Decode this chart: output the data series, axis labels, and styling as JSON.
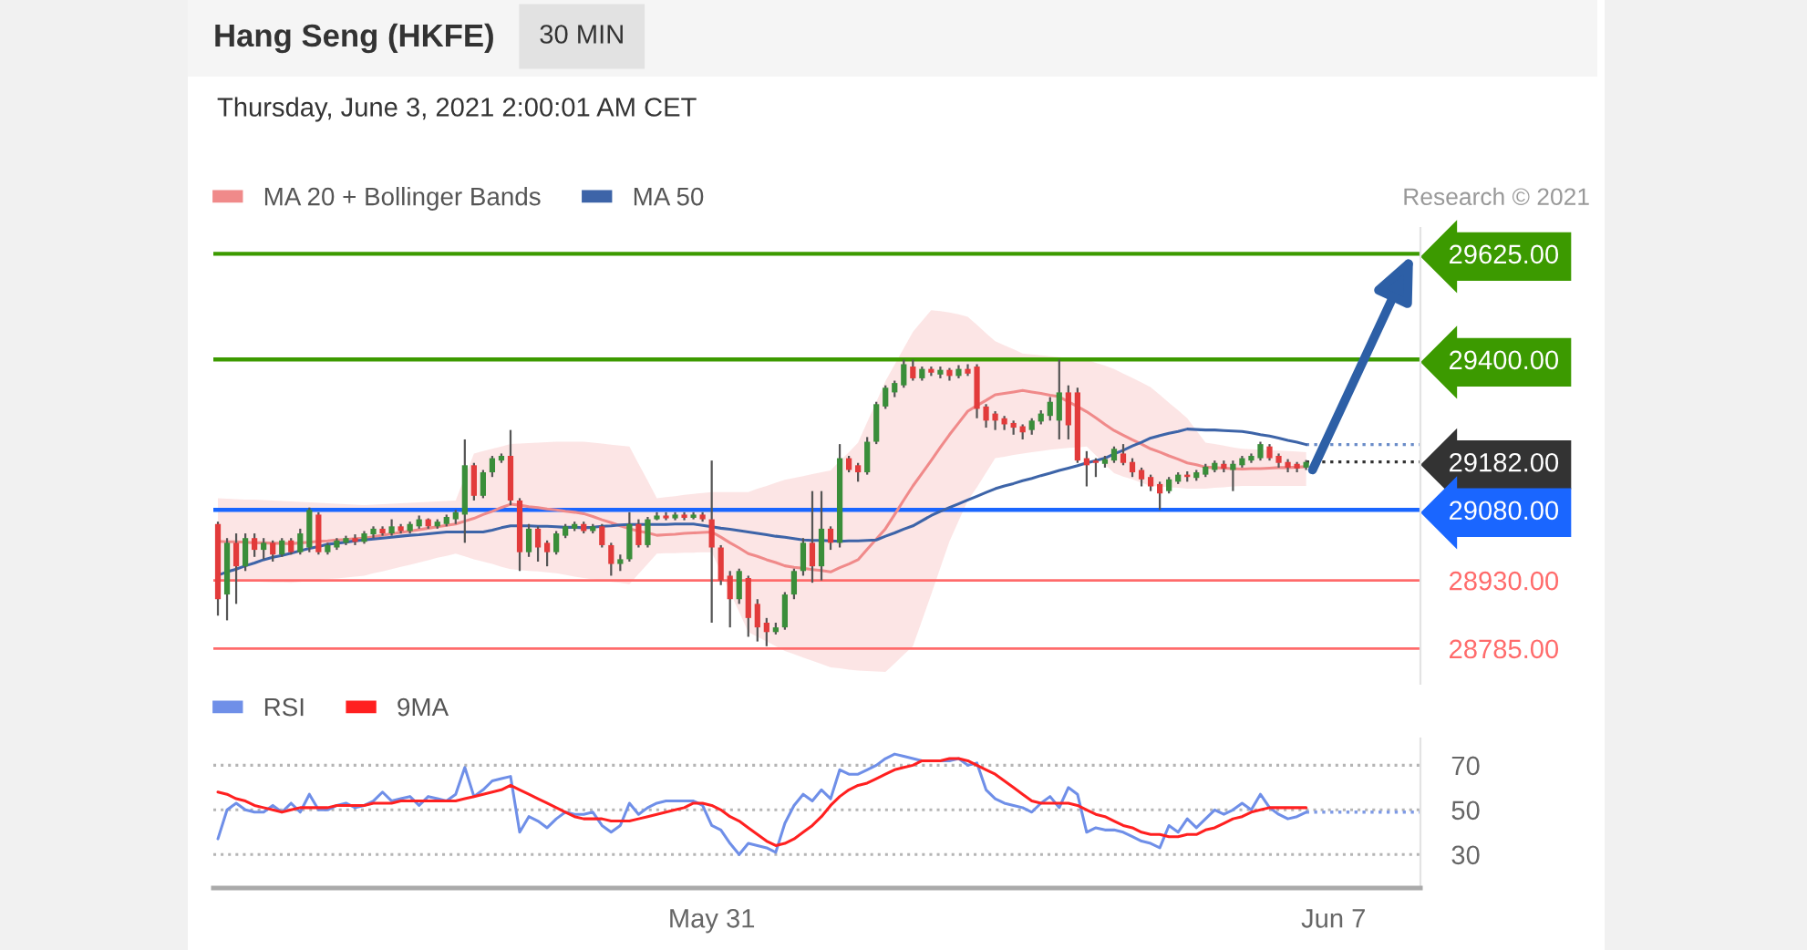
{
  "chart_data": [
    {
      "type": "candlestick",
      "title": "Hang Seng (HKFE)",
      "subtitle": "Thursday, June 3, 2021 2:00:01 AM CET",
      "annotations": [
        "30 MIN",
        "Research © 2021"
      ],
      "categories": [
        null,
        null,
        null,
        null,
        null,
        null,
        null,
        null,
        null,
        null,
        null,
        null,
        null,
        null,
        null,
        null,
        null,
        null,
        null,
        null,
        null,
        null,
        null,
        null,
        null,
        null,
        null,
        null,
        null,
        null,
        null,
        null,
        null,
        null,
        null,
        null,
        null,
        null,
        null,
        null,
        null,
        null,
        null,
        null,
        null,
        null,
        null,
        null,
        null,
        null,
        null,
        null,
        null,
        null,
        null,
        null,
        null,
        null,
        null,
        null,
        null,
        null,
        null,
        null,
        null,
        null,
        null,
        null,
        null,
        null,
        null,
        null,
        null,
        null,
        null,
        null,
        null,
        null,
        null,
        null,
        null,
        null,
        null,
        null,
        null,
        null,
        null,
        null,
        null,
        null,
        null,
        null,
        null,
        null,
        null,
        null,
        null,
        null,
        null,
        null,
        null,
        null,
        null,
        null,
        null,
        null,
        null,
        null,
        null,
        null,
        null,
        null,
        null,
        null,
        null,
        null,
        null,
        null,
        null,
        null,
        null,
        null,
        null,
        null,
        null,
        null,
        null,
        null,
        null,
        null,
        null,
        null
      ],
      "ohlc": [
        [
          29050,
          29055,
          28855,
          28890
        ],
        [
          28900,
          29020,
          28845,
          29010
        ],
        [
          29010,
          29030,
          28880,
          28960
        ],
        [
          28960,
          29030,
          28950,
          29020
        ],
        [
          29020,
          29030,
          28980,
          28995
        ],
        [
          28995,
          29020,
          28975,
          29010
        ],
        [
          29010,
          29015,
          28970,
          28985
        ],
        [
          28985,
          29020,
          28980,
          29015
        ],
        [
          29015,
          29020,
          28985,
          28990
        ],
        [
          28990,
          29040,
          28985,
          29030
        ],
        [
          29000,
          29085,
          28990,
          29080
        ],
        [
          29070,
          29075,
          28985,
          28990
        ],
        [
          28990,
          29010,
          28985,
          29005
        ],
        [
          29000,
          29020,
          28995,
          29015
        ],
        [
          29010,
          29025,
          29005,
          29020
        ],
        [
          29020,
          29028,
          29005,
          29012
        ],
        [
          29012,
          29035,
          29008,
          29030
        ],
        [
          29028,
          29045,
          29020,
          29040
        ],
        [
          29040,
          29045,
          29025,
          29030
        ],
        [
          29030,
          29060,
          29025,
          29045
        ],
        [
          29045,
          29050,
          29030,
          29035
        ],
        [
          29035,
          29055,
          29030,
          29050
        ],
        [
          29045,
          29068,
          29040,
          29060
        ],
        [
          29060,
          29062,
          29040,
          29045
        ],
        [
          29045,
          29060,
          29040,
          29055
        ],
        [
          29050,
          29070,
          29045,
          29065
        ],
        [
          29060,
          29080,
          29050,
          29075
        ],
        [
          29070,
          29230,
          29010,
          29175
        ],
        [
          29175,
          29180,
          29100,
          29110
        ],
        [
          29110,
          29165,
          29105,
          29160
        ],
        [
          29160,
          29195,
          29150,
          29190
        ],
        [
          29185,
          29200,
          29180,
          29195
        ],
        [
          29195,
          29250,
          29090,
          29100
        ],
        [
          29100,
          29105,
          28950,
          28990
        ],
        [
          28990,
          29050,
          28980,
          29040
        ],
        [
          29040,
          29045,
          28970,
          29000
        ],
        [
          29010,
          29015,
          28960,
          28990
        ],
        [
          28990,
          29035,
          28985,
          29030
        ],
        [
          29025,
          29050,
          29020,
          29045
        ],
        [
          29040,
          29055,
          29035,
          29050
        ],
        [
          29050,
          29055,
          29030,
          29035
        ],
        [
          29035,
          29050,
          29030,
          29045
        ],
        [
          29045,
          29050,
          29000,
          29005
        ],
        [
          29005,
          29010,
          28940,
          28965
        ],
        [
          28965,
          28985,
          28950,
          28975
        ],
        [
          28975,
          29075,
          28970,
          29050
        ],
        [
          29050,
          29060,
          29000,
          29005
        ],
        [
          29005,
          29065,
          29000,
          29060
        ],
        [
          29060,
          29075,
          29058,
          29068
        ],
        [
          29068,
          29075,
          29058,
          29062
        ],
        [
          29062,
          29075,
          29058,
          29070
        ],
        [
          29070,
          29075,
          29058,
          29063
        ],
        [
          29063,
          29075,
          29060,
          29070
        ],
        [
          29070,
          29075,
          29055,
          29060
        ],
        [
          29060,
          29185,
          28840,
          29000
        ],
        [
          29000,
          29005,
          28920,
          28930
        ],
        [
          28940,
          28950,
          28830,
          28890
        ],
        [
          28890,
          28955,
          28880,
          28950
        ],
        [
          28935,
          28940,
          28810,
          28850
        ],
        [
          28880,
          28890,
          28800,
          28830
        ],
        [
          28840,
          28850,
          28790,
          28820
        ],
        [
          28820,
          28840,
          28815,
          28830
        ],
        [
          28830,
          28905,
          28825,
          28900
        ],
        [
          28900,
          28955,
          28890,
          28950
        ],
        [
          28950,
          29020,
          28940,
          29010
        ],
        [
          29010,
          29120,
          28925,
          28960
        ],
        [
          28960,
          29120,
          28930,
          29040
        ],
        [
          29040,
          29045,
          28995,
          29010
        ],
        [
          29010,
          29220,
          29000,
          29190
        ],
        [
          29190,
          29195,
          29160,
          29165
        ],
        [
          29175,
          29180,
          29140,
          29160
        ],
        [
          29160,
          29235,
          29155,
          29225
        ],
        [
          29225,
          29310,
          29220,
          29305
        ],
        [
          29300,
          29345,
          29295,
          29340
        ],
        [
          29330,
          29355,
          29320,
          29350
        ],
        [
          29345,
          29400,
          29340,
          29390
        ],
        [
          29385,
          29400,
          29355,
          29360
        ],
        [
          29360,
          29385,
          29355,
          29380
        ],
        [
          29380,
          29385,
          29365,
          29372
        ],
        [
          29368,
          29385,
          29360,
          29378
        ],
        [
          29378,
          29382,
          29355,
          29365
        ],
        [
          29365,
          29388,
          29360,
          29380
        ],
        [
          29380,
          29390,
          29365,
          29370
        ],
        [
          29385,
          29390,
          29275,
          29295
        ],
        [
          29300,
          29305,
          29255,
          29270
        ],
        [
          29285,
          29290,
          29250,
          29270
        ],
        [
          29275,
          29280,
          29250,
          29262
        ],
        [
          29265,
          29270,
          29240,
          29255
        ],
        [
          29258,
          29262,
          29230,
          29245
        ],
        [
          29250,
          29275,
          29240,
          29270
        ],
        [
          29268,
          29292,
          29262,
          29285
        ],
        [
          29280,
          29320,
          29270,
          29310
        ],
        [
          29270,
          29400,
          29230,
          29330
        ],
        [
          29330,
          29345,
          29230,
          29260
        ],
        [
          29330,
          29340,
          29180,
          29185
        ],
        [
          29190,
          29205,
          29130,
          29175
        ],
        [
          29185,
          29190,
          29150,
          29180
        ],
        [
          29178,
          29195,
          29170,
          29188
        ],
        [
          29185,
          29215,
          29180,
          29210
        ],
        [
          29200,
          29220,
          29175,
          29180
        ],
        [
          29182,
          29190,
          29150,
          29160
        ],
        [
          29165,
          29170,
          29130,
          29145
        ],
        [
          29150,
          29155,
          29120,
          29130
        ],
        [
          29135,
          29140,
          29080,
          29115
        ],
        [
          29120,
          29150,
          29115,
          29145
        ],
        [
          29140,
          29160,
          29135,
          29155
        ],
        [
          29155,
          29162,
          29140,
          29150
        ],
        [
          29148,
          29165,
          29142,
          29160
        ],
        [
          29155,
          29178,
          29150,
          29172
        ],
        [
          29165,
          29185,
          29160,
          29180
        ],
        [
          29178,
          29185,
          29160,
          29168
        ],
        [
          29165,
          29185,
          29120,
          29178
        ],
        [
          29175,
          29195,
          29170,
          29190
        ],
        [
          29185,
          29200,
          29180,
          29195
        ],
        [
          29190,
          29225,
          29185,
          29220
        ],
        [
          29215,
          29220,
          29185,
          29190
        ],
        [
          29195,
          29200,
          29170,
          29180
        ],
        [
          29182,
          29188,
          29160,
          29170
        ],
        [
          29178,
          29182,
          29160,
          29168
        ],
        [
          29170,
          29186,
          29165,
          29182
        ],
        null,
        null,
        null,
        null,
        null,
        null,
        null,
        null,
        null,
        null,
        null,
        null
      ],
      "colors": [
        "#e23b3b",
        "#3a8e3a",
        "#e23b3b",
        "#3a8e3a",
        "#e23b3b",
        "#3a8e3a",
        "#e23b3b",
        "#3a8e3a",
        "#e23b3b",
        "#3a8e3a",
        "#3a8e3a",
        "#e23b3b",
        "#3a8e3a",
        "#3a8e3a",
        "#3a8e3a",
        "#e23b3b",
        "#3a8e3a",
        "#3a8e3a",
        "#e23b3b",
        "#3a8e3a",
        "#e23b3b",
        "#3a8e3a",
        "#3a8e3a",
        "#e23b3b",
        "#3a8e3a",
        "#3a8e3a",
        "#3a8e3a",
        "#3a8e3a",
        "#e23b3b",
        "#3a8e3a",
        "#3a8e3a",
        "#3a8e3a",
        "#e23b3b",
        "#e23b3b",
        "#3a8e3a",
        "#e23b3b",
        "#e23b3b",
        "#3a8e3a",
        "#3a8e3a",
        "#3a8e3a",
        "#e23b3b",
        "#3a8e3a",
        "#e23b3b",
        "#e23b3b",
        "#3a8e3a",
        "#3a8e3a",
        "#e23b3b",
        "#3a8e3a",
        "#3a8e3a",
        "#e23b3b",
        "#3a8e3a",
        "#e23b3b",
        "#3a8e3a",
        "#e23b3b",
        "#e23b3b",
        "#e23b3b",
        "#e23b3b",
        "#3a8e3a",
        "#e23b3b",
        "#e23b3b",
        "#e23b3b",
        "#3a8e3a",
        "#3a8e3a",
        "#3a8e3a",
        "#3a8e3a",
        "#e23b3b",
        "#3a8e3a",
        "#e23b3b",
        "#3a8e3a",
        "#e23b3b",
        "#e23b3b",
        "#3a8e3a",
        "#3a8e3a",
        "#3a8e3a",
        "#3a8e3a",
        "#3a8e3a",
        "#e23b3b",
        "#3a8e3a",
        "#e23b3b",
        "#3a8e3a",
        "#e23b3b",
        "#3a8e3a",
        "#e23b3b",
        "#e23b3b",
        "#e23b3b",
        "#e23b3b",
        "#e23b3b",
        "#e23b3b",
        "#e23b3b",
        "#3a8e3a",
        "#3a8e3a",
        "#3a8e3a",
        "#3a8e3a",
        "#e23b3b",
        "#e23b3b",
        "#e23b3b",
        "#e23b3b",
        "#3a8e3a",
        "#3a8e3a",
        "#e23b3b",
        "#e23b3b",
        "#e23b3b",
        "#e23b3b",
        "#e23b3b",
        "#3a8e3a",
        "#3a8e3a",
        "#e23b3b",
        "#3a8e3a",
        "#3a8e3a",
        "#3a8e3a",
        "#e23b3b",
        "#3a8e3a",
        "#3a8e3a",
        "#3a8e3a",
        "#3a8e3a",
        "#e23b3b",
        "#e23b3b",
        "#e23b3b",
        "#e23b3b",
        "#3a8e3a",
        null,
        null,
        null,
        null,
        null,
        null,
        null,
        null,
        null,
        null,
        null,
        null
      ],
      "series": [
        {
          "name": "MA 20 + Bollinger Bands",
          "type": "line",
          "color": "#f08a8a",
          "values": [
            29013,
            29012,
            29012,
            29011,
            29010,
            29010,
            29009,
            29009,
            29008,
            29010,
            29011,
            29013,
            29014,
            29016,
            29017,
            29019,
            29020,
            29023,
            29026,
            29029,
            29032,
            29035,
            29038,
            29041,
            29044,
            29047,
            29050,
            29056,
            29062,
            29070,
            29077,
            29085,
            29092,
            29090,
            29087,
            29085,
            29082,
            29080,
            29077,
            29075,
            29072,
            29066,
            29059,
            29053,
            29046,
            29040,
            29035,
            29031,
            29026,
            29027,
            29028,
            29030,
            29031,
            29032,
            29033,
            29022,
            29010,
            28999,
            28987,
            28981,
            28974,
            28968,
            28961,
            28958,
            28956,
            28953,
            28951,
            28948,
            28957,
            28965,
            28974,
            28996,
            29018,
            29040,
            29070,
            29101,
            29131,
            29158,
            29185,
            29213,
            29240,
            29265,
            29290,
            29302,
            29313,
            29325,
            29328,
            29331,
            29334,
            29331,
            29328,
            29324,
            29321,
            29310,
            29300,
            29289,
            29276,
            29262,
            29249,
            29239,
            29229,
            29220,
            29210,
            29203,
            29195,
            29188,
            29180,
            29176,
            29171,
            29170,
            29169,
            29168,
            29167,
            29168,
            29168,
            29169,
            29170,
            29170,
            29171,
            29172,
            null,
            null,
            null,
            null,
            null,
            null,
            null,
            null,
            null,
            null,
            null,
            null
          ],
          "lower": [
            28930,
            28929,
            28929,
            28928,
            28928,
            28927,
            28926,
            28926,
            28925,
            28927,
            28929,
            28931,
            28933,
            28934,
            28936,
            28938,
            28940,
            28945,
            28949,
            28954,
            28959,
            28963,
            28968,
            28973,
            28978,
            28982,
            28987,
            28981,
            28975,
            28970,
            28965,
            28959,
            28954,
            28952,
            28950,
            28949,
            28947,
            28945,
            28942,
            28938,
            28935,
            28932,
            28930,
            28927,
            28925,
            28922,
            28944,
            28965,
            28987,
            28988,
            28988,
            28989,
            28989,
            28990,
            28990,
            28948,
            28905,
            28863,
            28820,
            28810,
            28800,
            28790,
            28780,
            28773,
            28766,
            28759,
            28752,
            28745,
            28743,
            28740,
            28738,
            28737,
            28736,
            28735,
            28753,
            28772,
            28790,
            28845,
            28900,
            28957,
            29013,
            29057,
            29100,
            29128,
            29159,
            29190,
            29193,
            29197,
            29200,
            29203,
            29205,
            29208,
            29210,
            29212,
            29213,
            29215,
            29196,
            29177,
            29158,
            29151,
            29145,
            29138,
            29131,
            29130,
            29128,
            29127,
            29125,
            29125,
            29125,
            29127,
            29128,
            29130,
            29131,
            29131,
            29131,
            29131,
            29131,
            29131,
            29131,
            29131,
            null,
            null,
            null,
            null,
            null,
            null,
            null,
            null,
            null,
            null,
            null,
            null
          ],
          "upper": [
            29105,
            29104,
            29103,
            29102,
            29102,
            29101,
            29100,
            29099,
            29098,
            29097,
            29096,
            29095,
            29094,
            29093,
            29092,
            29091,
            29090,
            29091,
            29092,
            29093,
            29094,
            29095,
            29096,
            29097,
            29098,
            29099,
            29100,
            29150,
            29200,
            29205,
            29210,
            29215,
            29220,
            29221,
            29222,
            29223,
            29224,
            29225,
            29225,
            29225,
            29225,
            29223,
            29221,
            29219,
            29217,
            29215,
            29178,
            29142,
            29105,
            29107,
            29109,
            29112,
            29114,
            29116,
            29118,
            29118,
            29118,
            29118,
            29118,
            29125,
            29131,
            29138,
            29144,
            29148,
            29152,
            29156,
            29160,
            29164,
            29184,
            29203,
            29223,
            29267,
            29310,
            29354,
            29389,
            29424,
            29459,
            29482,
            29505,
            29503,
            29500,
            29496,
            29491,
            29474,
            29456,
            29439,
            29430,
            29422,
            29413,
            29411,
            29409,
            29407,
            29405,
            29403,
            29402,
            29400,
            29393,
            29387,
            29380,
            29370,
            29361,
            29351,
            29341,
            29325,
            29308,
            29292,
            29275,
            29249,
            29223,
            29220,
            29217,
            29213,
            29210,
            29209,
            29208,
            29207,
            29206,
            29205,
            29204,
            29203,
            null,
            null,
            null,
            null,
            null,
            null,
            null,
            null,
            null,
            null,
            null,
            null
          ]
        },
        {
          "name": "MA 50",
          "type": "line",
          "color": "#3d64a8",
          "values": [
            28941,
            28948,
            28954,
            28961,
            28967,
            28974,
            28979,
            28983,
            28988,
            28993,
            28998,
            29002,
            29007,
            29009,
            29011,
            29014,
            29016,
            29018,
            29020,
            29022,
            29024,
            29026,
            29027,
            29029,
            29031,
            29033,
            29033,
            29033,
            29033,
            29033,
            29037,
            29042,
            29046,
            29046,
            29046,
            29045,
            29045,
            29044,
            29043,
            29043,
            29042,
            29043,
            29045,
            29046,
            29048,
            29049,
            29049,
            29049,
            29049,
            29049,
            29050,
            29050,
            29050,
            29047,
            29044,
            29041,
            29039,
            29036,
            29033,
            29030,
            29027,
            29024,
            29022,
            29019,
            29016,
            29015,
            29015,
            29014,
            29013,
            29014,
            29014,
            29015,
            29016,
            29024,
            29031,
            29039,
            29046,
            29057,
            29068,
            29077,
            29085,
            29093,
            29101,
            29109,
            29117,
            29125,
            29131,
            29136,
            29142,
            29147,
            29153,
            29158,
            29164,
            29169,
            29174,
            29180,
            29185,
            29190,
            29199,
            29207,
            29216,
            29224,
            29233,
            29238,
            29243,
            29247,
            29252,
            29251,
            29250,
            29250,
            29249,
            29248,
            29247,
            29244,
            29240,
            29237,
            29233,
            29228,
            29224,
            29219,
            null,
            null,
            null,
            null,
            null,
            null,
            null,
            null,
            null,
            null,
            null,
            null
          ]
        }
      ],
      "ylim": [
        28710,
        29680
      ],
      "yticks": [
        {
          "value": 29625,
          "label": "29625.00"
        },
        {
          "value": 29400,
          "label": "29400.00"
        },
        {
          "value": 29182,
          "label": "29182.00"
        },
        {
          "value": 29080,
          "label": "29080.00"
        },
        {
          "value": 28930,
          "label": "28930.00"
        },
        {
          "value": 28785,
          "label": "28785.00"
        }
      ],
      "ref_lines": [
        {
          "axis": "y",
          "value": 29625,
          "color": "#3c9a00"
        },
        {
          "axis": "y",
          "value": 29400,
          "color": "#3c9a00"
        },
        {
          "axis": "y",
          "value": 29219,
          "color": "#6a8cc8",
          "line_style": "dotted"
        },
        {
          "axis": "y",
          "value": 29182,
          "color": "#333333",
          "line_style": "dotted"
        },
        {
          "axis": "y",
          "value": 29080,
          "color": "#1a66ff"
        },
        {
          "axis": "y",
          "value": 28930,
          "color": "#ff6b6b"
        },
        {
          "axis": "y",
          "value": 28785,
          "color": "#ff6b6b"
        }
      ],
      "legend": "top left",
      "tick_labels": "y"
    },
    {
      "type": "line",
      "categories": [
        null,
        null,
        null,
        null,
        null,
        null,
        null,
        null,
        null,
        null,
        null,
        null,
        null,
        null,
        null,
        null,
        null,
        null,
        null,
        null,
        null,
        null,
        null,
        null,
        null,
        null,
        null,
        null,
        null,
        null,
        null,
        null,
        null,
        null,
        null,
        null,
        null,
        null,
        null,
        null,
        null,
        null,
        null,
        null,
        null,
        null,
        null,
        null,
        null,
        null,
        null,
        null,
        null,
        null,
        "May 31",
        null,
        null,
        null,
        null,
        null,
        null,
        null,
        null,
        null,
        null,
        null,
        null,
        null,
        null,
        null,
        null,
        null,
        null,
        null,
        null,
        null,
        null,
        null,
        null,
        null,
        null,
        null,
        null,
        null,
        null,
        null,
        null,
        null,
        null,
        null,
        null,
        null,
        null,
        null,
        null,
        null,
        null,
        null,
        null,
        null,
        null,
        null,
        null,
        null,
        null,
        null,
        null,
        null,
        null,
        null,
        null,
        null,
        null,
        null,
        null,
        null,
        null,
        null,
        null,
        null,
        null,
        null,
        "Jun 7",
        null,
        null,
        null,
        null,
        null,
        null,
        null,
        null,
        null
      ],
      "series": [
        {
          "name": "RSI",
          "color": "#6f8fe8",
          "values": [
            37,
            50,
            53,
            50,
            49,
            49,
            52,
            49,
            53,
            49,
            57,
            50,
            50,
            52,
            53,
            51,
            52,
            54,
            58,
            54,
            55,
            56,
            52,
            56,
            55,
            54,
            57,
            69,
            56,
            59,
            63,
            64,
            65,
            40,
            47,
            45,
            42,
            46,
            49,
            48,
            48,
            49,
            43,
            40,
            43,
            53,
            48,
            51,
            53,
            54,
            54,
            54,
            54,
            52,
            43,
            41,
            35,
            30,
            35,
            34,
            33,
            31,
            44,
            52,
            57,
            54,
            59,
            55,
            68,
            66,
            66,
            68,
            70,
            73,
            75,
            74,
            73,
            72,
            72,
            72,
            72,
            73,
            70,
            71,
            59,
            55,
            53,
            52,
            51,
            49,
            53,
            56,
            51,
            60,
            57,
            40,
            42,
            41,
            41,
            40,
            38,
            36,
            35,
            33,
            43,
            40,
            46,
            42,
            46,
            50,
            48,
            50,
            53,
            50,
            57,
            51,
            48,
            46,
            47,
            49,
            null,
            null,
            null,
            null,
            null,
            null,
            null,
            null,
            null,
            null,
            null,
            null
          ]
        },
        {
          "name": "9MA",
          "color": "#ff2020",
          "values": [
            58,
            57,
            55,
            54,
            52,
            51,
            50,
            49,
            50,
            51,
            51,
            51,
            51,
            52,
            52,
            52,
            52,
            53,
            53,
            53,
            54,
            54,
            54,
            54,
            54,
            54,
            54,
            55,
            56,
            57,
            58,
            59,
            61,
            59,
            57,
            55,
            53,
            51,
            49,
            47,
            46,
            46,
            46,
            45,
            45,
            45,
            46,
            47,
            48,
            49,
            50,
            51,
            53,
            53,
            52,
            50,
            47,
            45,
            42,
            39,
            36,
            34,
            35,
            37,
            40,
            43,
            47,
            52,
            56,
            59,
            61,
            62,
            64,
            66,
            68,
            69,
            70,
            72,
            72,
            72,
            73,
            73,
            72,
            70,
            68,
            66,
            63,
            60,
            57,
            54,
            53,
            53,
            53,
            53,
            52,
            50,
            48,
            47,
            45,
            43,
            42,
            40,
            39,
            39,
            38,
            38,
            39,
            39,
            41,
            42,
            44,
            46,
            47,
            49,
            50,
            51,
            51,
            51,
            51,
            51,
            null,
            null,
            null,
            null,
            null,
            null,
            null,
            null,
            null,
            null,
            null,
            null
          ]
        }
      ],
      "ylim": [
        15,
        82
      ],
      "yticks": [
        30,
        50,
        70
      ],
      "ref_lines": [
        {
          "axis": "y",
          "value": 49,
          "color": "#7f9be6",
          "line_style": "dotted"
        }
      ],
      "grid": "y",
      "legend": "top left"
    }
  ]
}
